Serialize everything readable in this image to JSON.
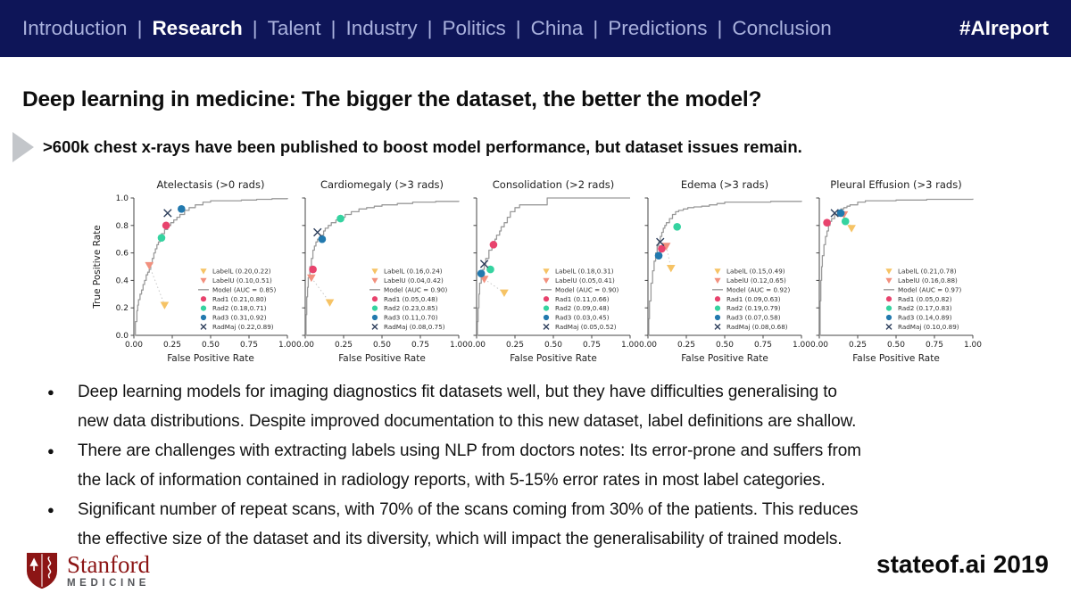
{
  "header": {
    "nav": {
      "items": [
        {
          "label": "Introduction",
          "active": false
        },
        {
          "label": "Research",
          "active": true
        },
        {
          "label": "Talent",
          "active": false
        },
        {
          "label": "Industry",
          "active": false
        },
        {
          "label": "Politics",
          "active": false
        },
        {
          "label": "China",
          "active": false
        },
        {
          "label": "Predictions",
          "active": false
        },
        {
          "label": "Conclusion",
          "active": false
        }
      ],
      "separator": "|"
    },
    "hashtag": "#AIreport",
    "bar_color": "#0e1558"
  },
  "title": "Deep learning in medicine: The bigger the dataset, the better the model?",
  "subtitle": ">600k chest x-rays have been published to boost model performance, but dataset issues remain.",
  "bullets": [
    {
      "lines": [
        "Deep learning models for imaging diagnostics fit datasets well, but they have difficulties generalising to",
        "new data distributions. Despite improved documentation to this new dataset, label definitions are shallow."
      ]
    },
    {
      "lines": [
        "There are challenges with extracting labels using NLP from doctors notes: Its error-prone and suffers from",
        "the lack of information contained in radiology reports, with 5-15% error rates in most label categories."
      ]
    },
    {
      "lines": [
        "Significant number of repeat scans, with 70% of the scans coming from 30% of the patients. This reduces",
        "the effective size of the dataset and its diversity, which will impact the generalisability of trained models."
      ]
    }
  ],
  "footer": {
    "logo": {
      "name": "Stanford",
      "sub": "MEDICINE",
      "shield_color": "#8c1515"
    },
    "branding": "stateof.ai 2019"
  },
  "axes": {
    "xlabel": "False Positive Rate",
    "ylabel": "True Positive Rate",
    "xticks": [
      "0.00",
      "0.25",
      "0.50",
      "0.75",
      "1.00"
    ],
    "yticks": [
      "0.0",
      "0.2",
      "0.4",
      "0.6",
      "0.8",
      "1.0"
    ]
  },
  "chart_style": {
    "series": [
      {
        "key": "LabelL",
        "marker": "triangle-down",
        "color": "#f6c365"
      },
      {
        "key": "LabelU",
        "marker": "triangle-down",
        "color": "#f2907e"
      },
      {
        "key": "Model",
        "marker": "line",
        "color": "#9a9a9a"
      },
      {
        "key": "Rad1",
        "marker": "circle",
        "color": "#e8436d"
      },
      {
        "key": "Rad2",
        "marker": "circle",
        "color": "#35d3a0"
      },
      {
        "key": "Rad3",
        "marker": "circle",
        "color": "#2279ae"
      },
      {
        "key": "RadMaj",
        "marker": "x",
        "color": "#2e3f5c"
      }
    ],
    "curve_color": "#9a9a9a",
    "connector_color": "#c8c8c8",
    "legend_position": "lower right",
    "grid": false
  },
  "chart_data": [
    {
      "title": "Atelectasis (>0 rads)",
      "type": "line",
      "xlabel": "False Positive Rate",
      "ylabel": "True Positive Rate",
      "xlim": [
        0,
        1
      ],
      "ylim": [
        0,
        1
      ],
      "model_auc": 0.85,
      "operating_points": {
        "LabelL": [
          0.2,
          0.22
        ],
        "LabelU": [
          0.1,
          0.51
        ],
        "Rad1": [
          0.21,
          0.8
        ],
        "Rad2": [
          0.18,
          0.71
        ],
        "Rad3": [
          0.31,
          0.92
        ],
        "RadMaj": [
          0.22,
          0.89
        ]
      },
      "roc_curve": [
        [
          0,
          0
        ],
        [
          0.01,
          0.1
        ],
        [
          0.02,
          0.18
        ],
        [
          0.025,
          0.22
        ],
        [
          0.03,
          0.26
        ],
        [
          0.04,
          0.3
        ],
        [
          0.05,
          0.33
        ],
        [
          0.06,
          0.37
        ],
        [
          0.07,
          0.4
        ],
        [
          0.08,
          0.44
        ],
        [
          0.09,
          0.46
        ],
        [
          0.1,
          0.48
        ],
        [
          0.11,
          0.52
        ],
        [
          0.12,
          0.56
        ],
        [
          0.13,
          0.6
        ],
        [
          0.14,
          0.63
        ],
        [
          0.15,
          0.66
        ],
        [
          0.16,
          0.68
        ],
        [
          0.17,
          0.72
        ],
        [
          0.18,
          0.74
        ],
        [
          0.2,
          0.77
        ],
        [
          0.22,
          0.8
        ],
        [
          0.24,
          0.82
        ],
        [
          0.26,
          0.84
        ],
        [
          0.28,
          0.86
        ],
        [
          0.3,
          0.88
        ],
        [
          0.33,
          0.91
        ],
        [
          0.36,
          0.93
        ],
        [
          0.4,
          0.95
        ],
        [
          0.45,
          0.97
        ],
        [
          0.5,
          0.98
        ],
        [
          0.6,
          0.98
        ],
        [
          0.7,
          0.985
        ],
        [
          0.8,
          0.99
        ],
        [
          0.9,
          0.995
        ],
        [
          1,
          1
        ]
      ]
    },
    {
      "title": "Cardiomegaly (>3 rads)",
      "type": "line",
      "xlabel": "False Positive Rate",
      "ylabel": "True Positive Rate",
      "xlim": [
        0,
        1
      ],
      "ylim": [
        0,
        1
      ],
      "model_auc": 0.9,
      "operating_points": {
        "LabelL": [
          0.16,
          0.24
        ],
        "LabelU": [
          0.04,
          0.42
        ],
        "Rad1": [
          0.05,
          0.48
        ],
        "Rad2": [
          0.23,
          0.85
        ],
        "Rad3": [
          0.11,
          0.7
        ],
        "RadMaj": [
          0.08,
          0.75
        ]
      },
      "roc_curve": [
        [
          0,
          0
        ],
        [
          0.005,
          0.15
        ],
        [
          0.01,
          0.28
        ],
        [
          0.015,
          0.35
        ],
        [
          0.02,
          0.42
        ],
        [
          0.03,
          0.5
        ],
        [
          0.04,
          0.56
        ],
        [
          0.05,
          0.62
        ],
        [
          0.06,
          0.65
        ],
        [
          0.07,
          0.68
        ],
        [
          0.08,
          0.7
        ],
        [
          0.09,
          0.71
        ],
        [
          0.1,
          0.72
        ],
        [
          0.11,
          0.73
        ],
        [
          0.12,
          0.76
        ],
        [
          0.13,
          0.78
        ],
        [
          0.15,
          0.8
        ],
        [
          0.17,
          0.82
        ],
        [
          0.2,
          0.84
        ],
        [
          0.23,
          0.86
        ],
        [
          0.26,
          0.88
        ],
        [
          0.3,
          0.9
        ],
        [
          0.35,
          0.92
        ],
        [
          0.4,
          0.93
        ],
        [
          0.45,
          0.94
        ],
        [
          0.5,
          0.95
        ],
        [
          0.6,
          0.96
        ],
        [
          0.7,
          0.97
        ],
        [
          0.85,
          0.975
        ],
        [
          1,
          0.98
        ]
      ]
    },
    {
      "title": "Consolidation (>2 rads)",
      "type": "line",
      "xlabel": "False Positive Rate",
      "ylabel": "True Positive Rate",
      "xlim": [
        0,
        1
      ],
      "ylim": [
        0,
        1
      ],
      "model_auc": 0.9,
      "operating_points": {
        "LabelL": [
          0.18,
          0.31
        ],
        "LabelU": [
          0.05,
          0.41
        ],
        "Rad1": [
          0.11,
          0.66
        ],
        "Rad2": [
          0.09,
          0.48
        ],
        "Rad3": [
          0.03,
          0.45
        ],
        "RadMaj": [
          0.05,
          0.52
        ]
      },
      "roc_curve": [
        [
          0,
          0
        ],
        [
          0.005,
          0.1
        ],
        [
          0.01,
          0.2
        ],
        [
          0.015,
          0.3
        ],
        [
          0.02,
          0.38
        ],
        [
          0.03,
          0.44
        ],
        [
          0.04,
          0.48
        ],
        [
          0.05,
          0.52
        ],
        [
          0.06,
          0.56
        ],
        [
          0.08,
          0.62
        ],
        [
          0.1,
          0.66
        ],
        [
          0.12,
          0.7
        ],
        [
          0.13,
          0.73
        ],
        [
          0.15,
          0.76
        ],
        [
          0.16,
          0.79
        ],
        [
          0.18,
          0.82
        ],
        [
          0.2,
          0.86
        ],
        [
          0.22,
          0.9
        ],
        [
          0.25,
          0.93
        ],
        [
          0.28,
          0.95
        ],
        [
          0.45,
          0.95
        ],
        [
          0.46,
          1
        ],
        [
          1,
          1
        ]
      ]
    },
    {
      "title": "Edema (>3 rads)",
      "type": "line",
      "xlabel": "False Positive Rate",
      "ylabel": "True Positive Rate",
      "xlim": [
        0,
        1
      ],
      "ylim": [
        0,
        1
      ],
      "model_auc": 0.92,
      "operating_points": {
        "LabelL": [
          0.15,
          0.49
        ],
        "LabelU": [
          0.12,
          0.65
        ],
        "Rad1": [
          0.09,
          0.63
        ],
        "Rad2": [
          0.19,
          0.79
        ],
        "Rad3": [
          0.07,
          0.58
        ],
        "RadMaj": [
          0.08,
          0.68
        ]
      },
      "roc_curve": [
        [
          0,
          0
        ],
        [
          0.005,
          0.12
        ],
        [
          0.01,
          0.25
        ],
        [
          0.02,
          0.38
        ],
        [
          0.03,
          0.47
        ],
        [
          0.04,
          0.54
        ],
        [
          0.05,
          0.6
        ],
        [
          0.06,
          0.65
        ],
        [
          0.07,
          0.68
        ],
        [
          0.08,
          0.72
        ],
        [
          0.09,
          0.75
        ],
        [
          0.1,
          0.78
        ],
        [
          0.11,
          0.8
        ],
        [
          0.12,
          0.82
        ],
        [
          0.14,
          0.85
        ],
        [
          0.16,
          0.88
        ],
        [
          0.18,
          0.9
        ],
        [
          0.2,
          0.91
        ],
        [
          0.23,
          0.92
        ],
        [
          0.26,
          0.93
        ],
        [
          0.3,
          0.935
        ],
        [
          0.35,
          0.94
        ],
        [
          0.4,
          0.95
        ],
        [
          0.45,
          0.96
        ],
        [
          0.5,
          0.97
        ],
        [
          0.6,
          0.97
        ],
        [
          0.8,
          0.975
        ],
        [
          1,
          0.98
        ]
      ]
    },
    {
      "title": "Pleural Effusion (>3 rads)",
      "type": "line",
      "xlabel": "False Positive Rate",
      "ylabel": "True Positive Rate",
      "xlim": [
        0,
        1
      ],
      "ylim": [
        0,
        1
      ],
      "model_auc": 0.97,
      "operating_points": {
        "LabelL": [
          0.21,
          0.78
        ],
        "LabelU": [
          0.16,
          0.88
        ],
        "Rad1": [
          0.05,
          0.82
        ],
        "Rad2": [
          0.17,
          0.83
        ],
        "Rad3": [
          0.14,
          0.89
        ],
        "RadMaj": [
          0.1,
          0.89
        ]
      },
      "roc_curve": [
        [
          0,
          0
        ],
        [
          0.005,
          0.25
        ],
        [
          0.01,
          0.4
        ],
        [
          0.015,
          0.5
        ],
        [
          0.02,
          0.58
        ],
        [
          0.03,
          0.66
        ],
        [
          0.04,
          0.72
        ],
        [
          0.05,
          0.76
        ],
        [
          0.06,
          0.8
        ],
        [
          0.07,
          0.83
        ],
        [
          0.08,
          0.85
        ],
        [
          0.1,
          0.88
        ],
        [
          0.12,
          0.9
        ],
        [
          0.14,
          0.92
        ],
        [
          0.16,
          0.93
        ],
        [
          0.18,
          0.94
        ],
        [
          0.2,
          0.95
        ],
        [
          0.25,
          0.97
        ],
        [
          0.3,
          0.98
        ],
        [
          0.4,
          0.98
        ],
        [
          0.5,
          0.985
        ],
        [
          0.7,
          0.99
        ],
        [
          1,
          0.995
        ]
      ]
    }
  ]
}
